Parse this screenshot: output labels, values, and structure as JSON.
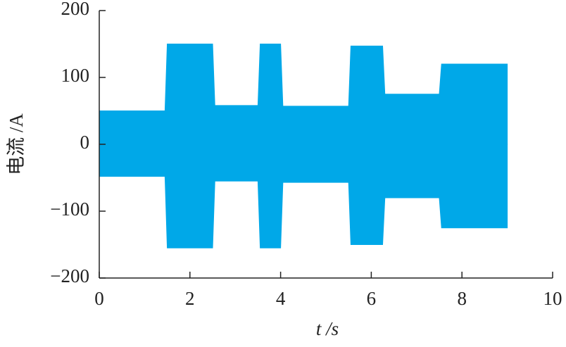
{
  "chart_data": {
    "type": "envelope",
    "xlabel": "t /s",
    "ylabel": "电流 /A",
    "color": "#00a8e8",
    "x": [
      0,
      1.45,
      1.5,
      2.5,
      2.55,
      3.5,
      3.55,
      4.0,
      4.05,
      5.5,
      5.55,
      6.25,
      6.3,
      7.5,
      7.55,
      9.0
    ],
    "upper": [
      50,
      50,
      150,
      150,
      58,
      58,
      150,
      150,
      57,
      57,
      147,
      147,
      75,
      75,
      120,
      120
    ],
    "lower": [
      -48,
      -48,
      -155,
      -155,
      -55,
      -55,
      -155,
      -155,
      -57,
      -57,
      -150,
      -150,
      -80,
      -80,
      -125,
      -125
    ],
    "xlim": [
      0,
      10
    ],
    "xticks": [
      0,
      2,
      4,
      6,
      8,
      10
    ],
    "ylim": [
      -200,
      200
    ],
    "yticks": [
      {
        "value": -200,
        "label": "−200"
      },
      {
        "value": -100,
        "label": "−100"
      },
      0,
      100,
      200
    ]
  }
}
